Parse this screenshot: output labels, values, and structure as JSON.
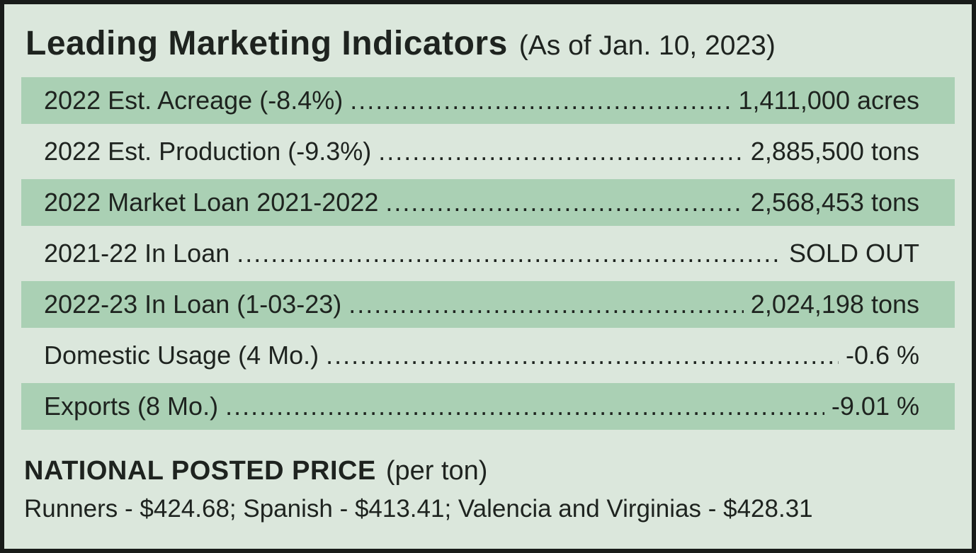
{
  "header": {
    "title": "Leading Marketing Indicators",
    "subtitle": "(As of Jan. 10, 2023)"
  },
  "table": {
    "leader_dots": "........................................................................................................................................................................",
    "rows": [
      {
        "label": "2022 Est. Acreage (-8.4%)",
        "value": "1,411,000 acres"
      },
      {
        "label": "2022 Est. Production (-9.3%)",
        "value": "2,885,500 tons"
      },
      {
        "label": "2022 Market Loan 2021-2022",
        "value": "2,568,453 tons"
      },
      {
        "label": "2021-22 In Loan",
        "value": "SOLD OUT"
      },
      {
        "label": "2022-23 In Loan (1-03-23)",
        "value": "2,024,198 tons"
      },
      {
        "label": "Domestic Usage (4 Mo.)",
        "value": "-0.6 %"
      },
      {
        "label": "Exports (8 Mo.)",
        "value": "-9.01 %"
      }
    ]
  },
  "footer": {
    "heading": "NATIONAL POSTED PRICE",
    "heading_suffix": "(per ton)",
    "prices_line": "Runners - $424.68; Spanish - $413.41; Valencia and Virginias - $428.31"
  },
  "colors": {
    "background": "#dbe7dc",
    "row_shaded": "#aad0b4",
    "text": "#1e231f",
    "border": "#191c1a"
  }
}
